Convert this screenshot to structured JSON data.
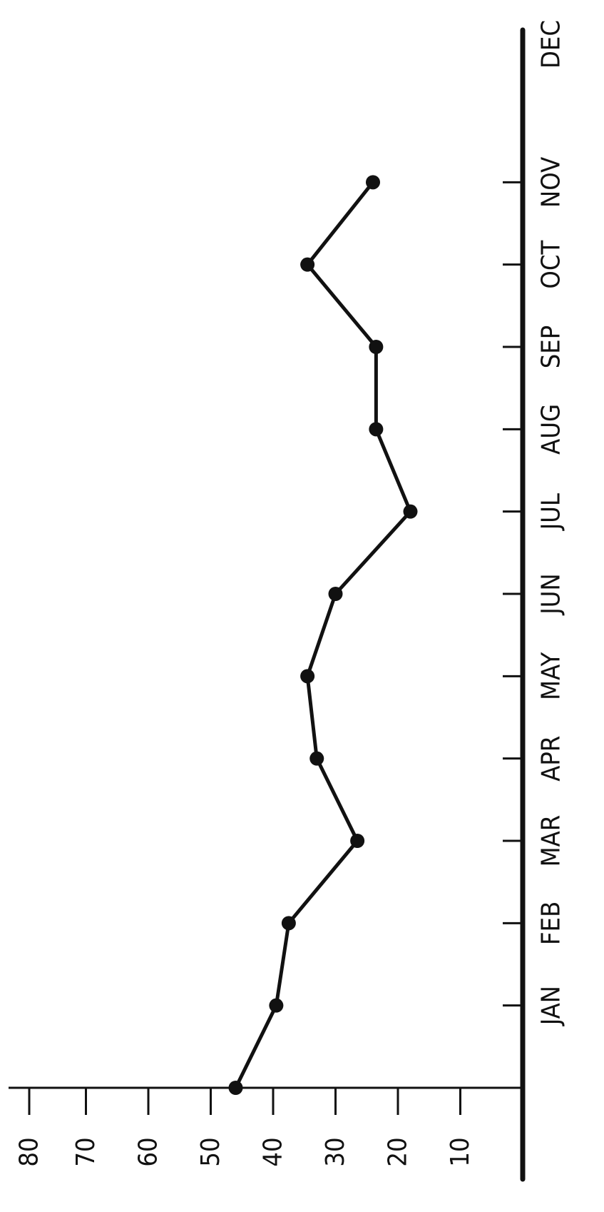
{
  "chart_data": {
    "type": "line",
    "orientation": "rotated-90",
    "title": "",
    "xlabel": "",
    "ylabel": "",
    "x_ticks": [
      "JAN",
      "FEB",
      "MAR",
      "APR",
      "MAY",
      "JUN",
      "JUL",
      "AUG",
      "SEP",
      "OCT",
      "NOV",
      "DEC"
    ],
    "y_ticks": [
      10,
      20,
      30,
      40,
      50,
      60,
      70,
      80
    ],
    "ylim": [
      0,
      80
    ],
    "grid": false,
    "series": [
      {
        "x": [
          0,
          1,
          2,
          3,
          4,
          5,
          6,
          7,
          8,
          9,
          10,
          11
        ],
        "values": [
          46,
          39.5,
          37.5,
          26.5,
          33,
          34.5,
          30,
          18,
          23.5,
          23.5,
          34.5,
          24
        ]
      }
    ],
    "colors": {
      "line": "#111111",
      "axis": "#111111"
    }
  }
}
